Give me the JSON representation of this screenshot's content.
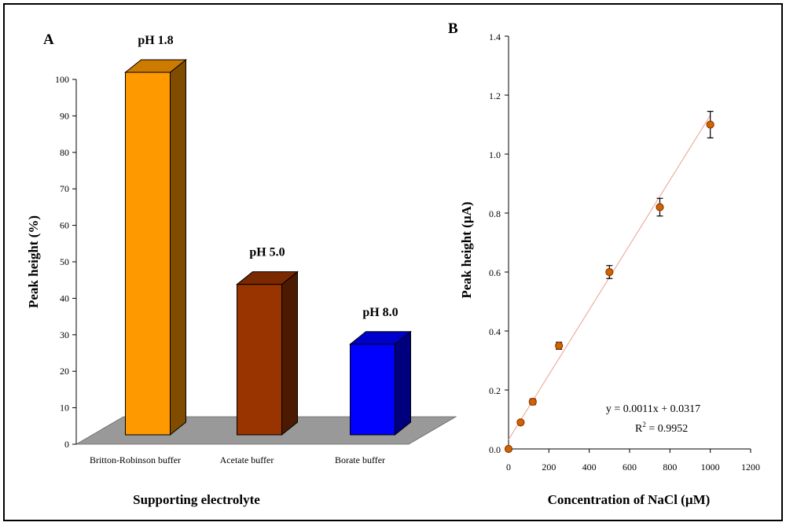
{
  "figure": {
    "panel_a_label": "A",
    "panel_b_label": "B"
  },
  "chart_data": [
    {
      "type": "bar",
      "panel": "A",
      "title": "",
      "xlabel": "Supporting electrolyte",
      "ylabel": "Peak height (%)",
      "ylim": [
        0,
        100
      ],
      "yticks": [
        "0",
        "10",
        "20",
        "30",
        "40",
        "50",
        "60",
        "70",
        "80",
        "90",
        "100"
      ],
      "categories": [
        "Britton-Robinson buffer",
        "Acetate buffer",
        "Borate buffer"
      ],
      "values": [
        100,
        41.5,
        25
      ],
      "data_labels": [
        "pH 1.8",
        "pH 5.0",
        "pH 8.0"
      ],
      "colors": {
        "front": [
          "#ff9900",
          "#993300",
          "#0000ff"
        ],
        "side": [
          "#7f4c00",
          "#4c1a00",
          "#00007f"
        ],
        "top": [
          "#cc7a00",
          "#7a2900",
          "#0000cc"
        ],
        "floor": "#999999"
      },
      "grid": false,
      "legend": "none"
    },
    {
      "type": "scatter",
      "panel": "B",
      "title": "",
      "xlabel": "Concentration of NaCl (µM)",
      "ylabel": "Peak height (µA)",
      "xlim": [
        0,
        1200
      ],
      "ylim": [
        0,
        1.4
      ],
      "xticks": [
        "0",
        "200",
        "400",
        "600",
        "800",
        "1000",
        "1200"
      ],
      "yticks": [
        "0.0",
        "0.2",
        "0.4",
        "0.6",
        "0.8",
        "1.0",
        "1.2",
        "1.4"
      ],
      "x": [
        0,
        60,
        120,
        250,
        500,
        750,
        1000
      ],
      "y": [
        0,
        0.09,
        0.16,
        0.35,
        0.6,
        0.82,
        1.1
      ],
      "yerr": [
        0,
        0.005,
        0.01,
        0.012,
        0.022,
        0.03,
        0.045
      ],
      "trendline": {
        "slope": 0.0011,
        "intercept": 0.0317,
        "x_range": [
          0,
          1000
        ]
      },
      "equation": "y = 0.0011x + 0.0317",
      "r2_prefix": "R",
      "r2_exponent": "2",
      "r2_value": " = 0.9952",
      "colors": {
        "marker_fill": "#cc6600",
        "marker_stroke": "#993300",
        "trendline": "#e8a090",
        "errorbar": "#000000"
      },
      "grid": false,
      "legend": "none"
    }
  ]
}
